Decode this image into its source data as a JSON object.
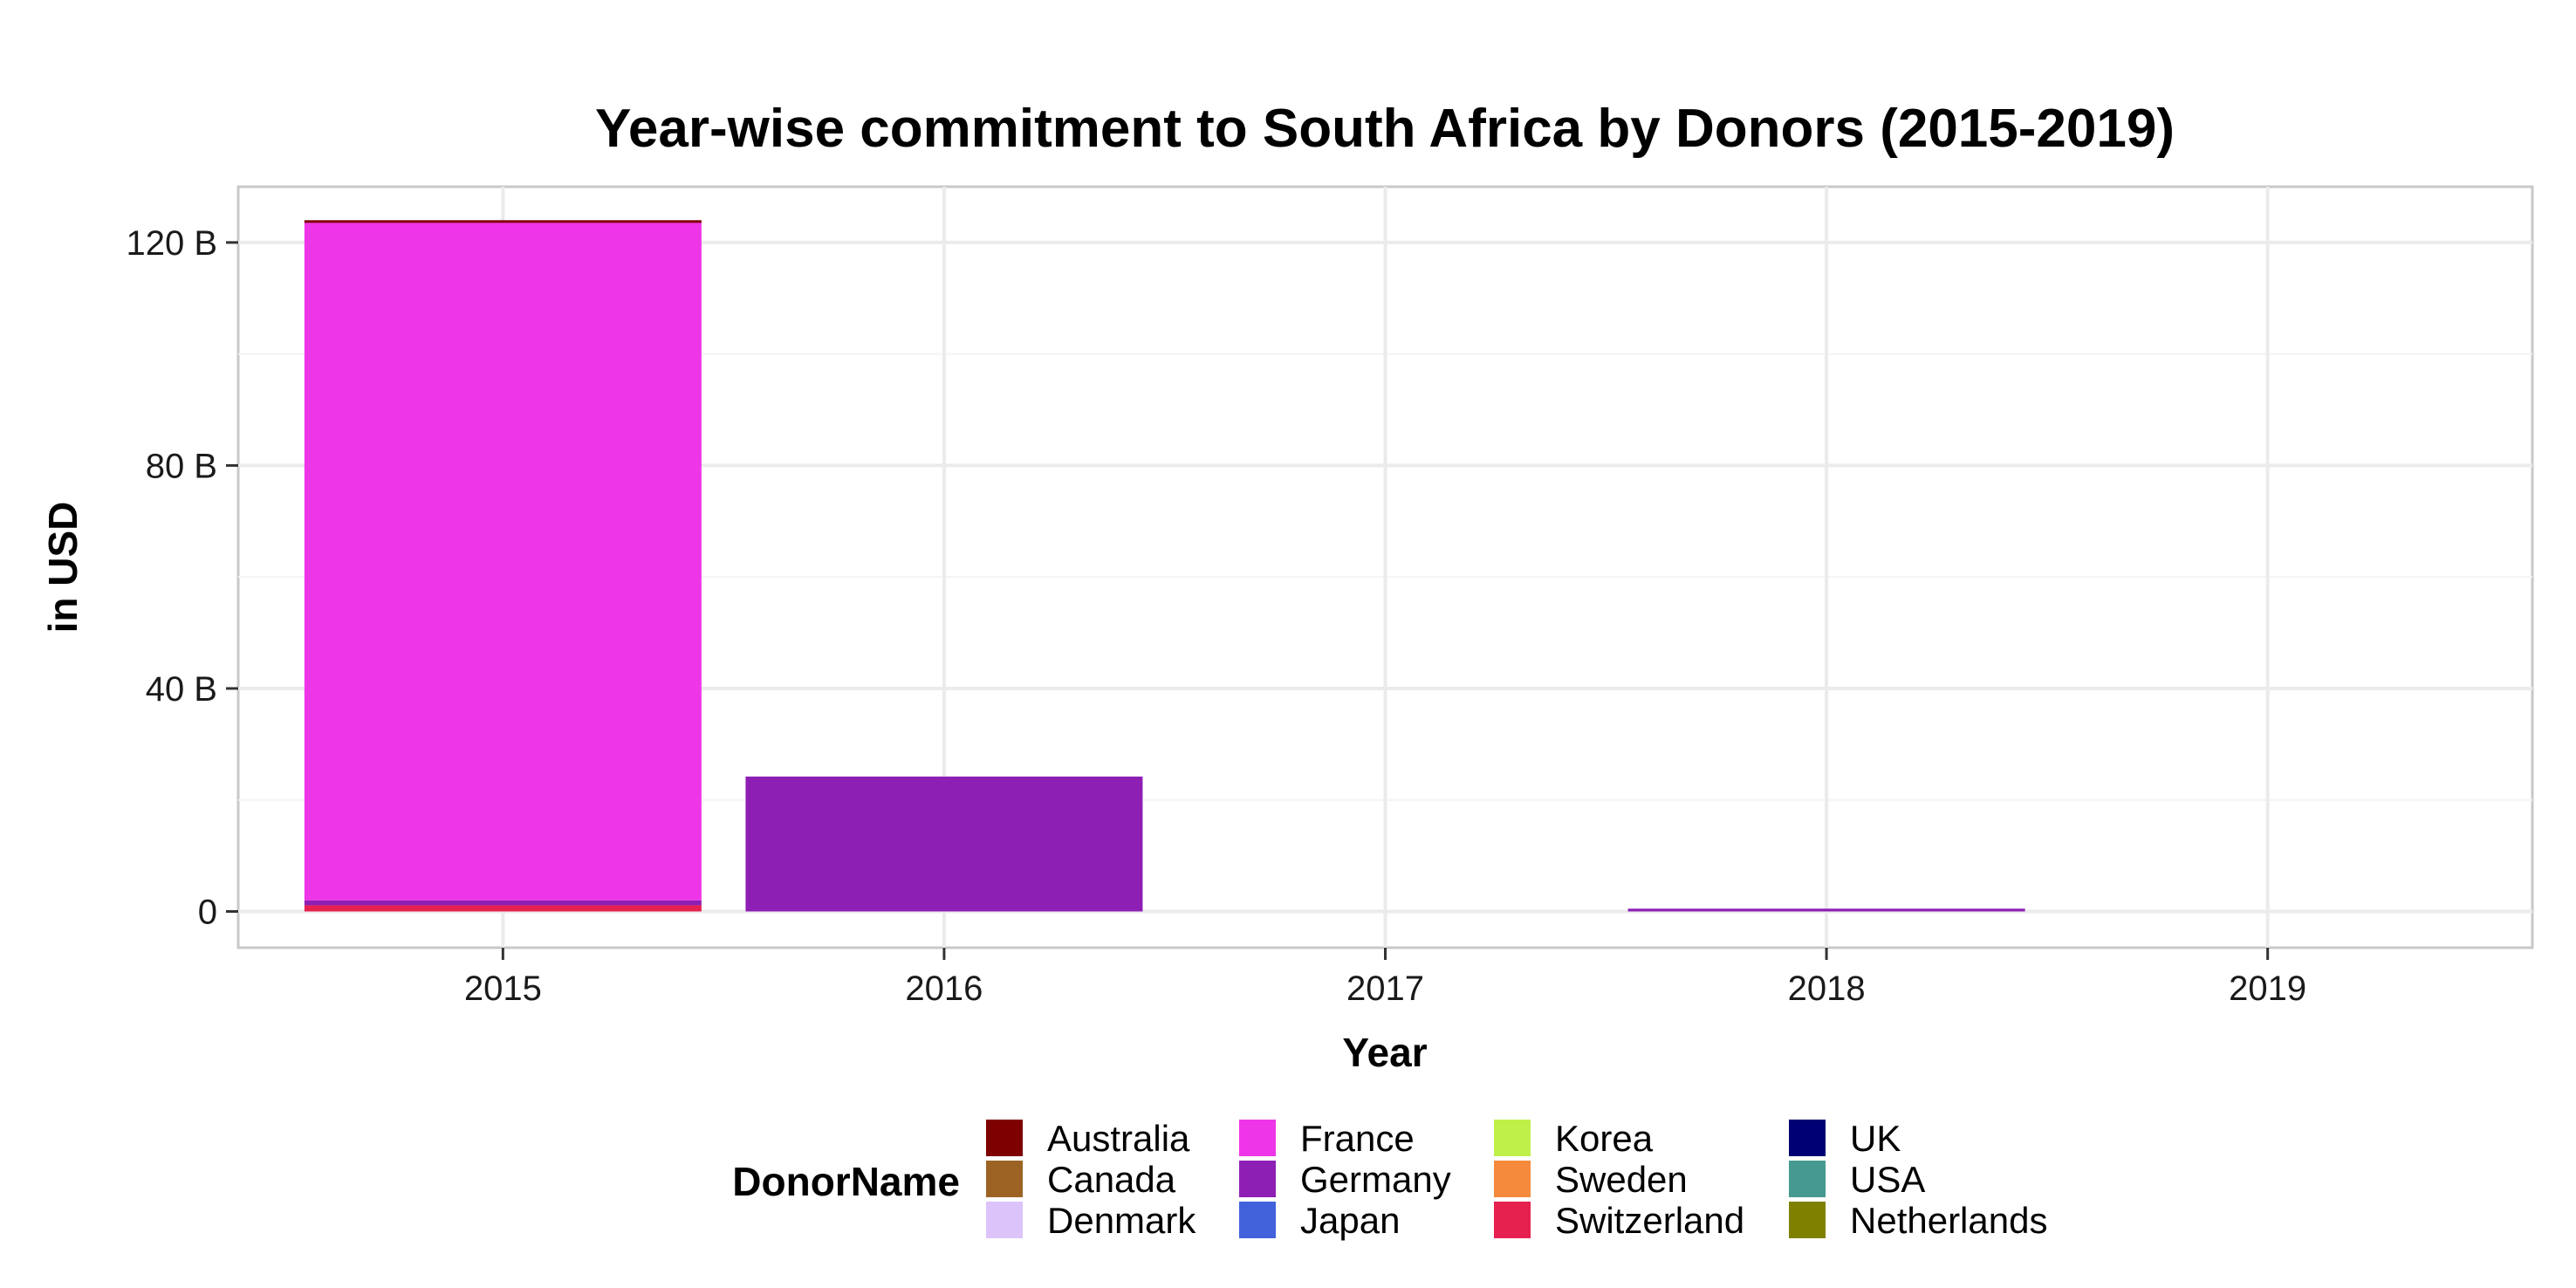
{
  "chart_data": {
    "type": "bar",
    "stacked": true,
    "title": "Year-wise commitment to South Africa by Donors (2015-2019)",
    "xlabel": "Year",
    "ylabel": "in USD",
    "categories": [
      "2015",
      "2016",
      "2017",
      "2018",
      "2019"
    ],
    "ylim": [
      -6.5,
      130
    ],
    "yticks": [
      {
        "value": 0,
        "label": "0"
      },
      {
        "value": 40,
        "label": "40 B"
      },
      {
        "value": 80,
        "label": "80 B"
      },
      {
        "value": 120,
        "label": "120 B"
      }
    ],
    "y_unit": "B",
    "grid": true,
    "legend": {
      "title": "DonorName",
      "position": "bottom",
      "columns": 4
    },
    "series": [
      {
        "name": "Australia",
        "color": "#7f0000",
        "values": [
          0.3,
          0,
          0,
          0,
          0
        ]
      },
      {
        "name": "Canada",
        "color": "#9c6325",
        "values": [
          0,
          0,
          0,
          0,
          0
        ]
      },
      {
        "name": "Denmark",
        "color": "#dcc4fa",
        "values": [
          0,
          0,
          0,
          0,
          0
        ]
      },
      {
        "name": "France",
        "color": "#ef35e8",
        "values": [
          121.7,
          0,
          0,
          0,
          0
        ]
      },
      {
        "name": "Germany",
        "color": "#8e1fb4",
        "values": [
          0.9,
          24.2,
          0,
          0.5,
          0
        ]
      },
      {
        "name": "Japan",
        "color": "#4262dc",
        "values": [
          0,
          0,
          0,
          0,
          0
        ]
      },
      {
        "name": "Korea",
        "color": "#bff04a",
        "values": [
          0,
          0,
          0,
          0,
          0
        ]
      },
      {
        "name": "Sweden",
        "color": "#f58a3c",
        "values": [
          0,
          0,
          0,
          0,
          0
        ]
      },
      {
        "name": "Switzerland",
        "color": "#e6214f",
        "values": [
          1.1,
          0,
          0,
          0,
          0
        ]
      },
      {
        "name": "UK",
        "color": "#000075",
        "values": [
          0,
          0,
          0,
          0,
          0
        ]
      },
      {
        "name": "USA",
        "color": "#469990",
        "values": [
          0,
          0,
          0,
          0,
          0
        ]
      },
      {
        "name": "Netherlands",
        "color": "#808000",
        "values": [
          0,
          0,
          0,
          0,
          0
        ]
      }
    ]
  }
}
